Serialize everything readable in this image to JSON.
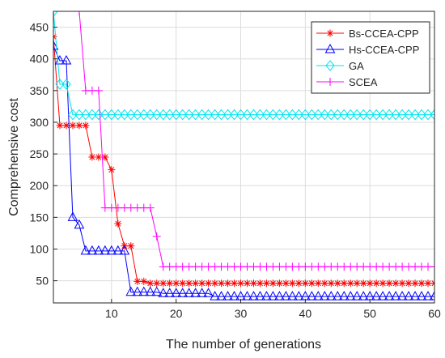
{
  "chart_data": {
    "type": "line",
    "title": "",
    "xlabel": "The number of generations",
    "ylabel": "Comprehensive cost",
    "xlim": [
      1,
      60
    ],
    "ylim": [
      15,
      475
    ],
    "xticks": [
      10,
      20,
      30,
      40,
      50,
      60
    ],
    "yticks": [
      50,
      100,
      150,
      200,
      250,
      300,
      350,
      400,
      450
    ],
    "grid": true,
    "legend_position": "top-right",
    "series": [
      {
        "name": "Bs-CCEA-CPP",
        "color": "#ff0000",
        "marker": "asterisk",
        "x": [
          1,
          2,
          3,
          4,
          5,
          6,
          7,
          8,
          9,
          10,
          11,
          12,
          13,
          14,
          15,
          16,
          17,
          18,
          19,
          20,
          21,
          22,
          23,
          24,
          25,
          26,
          27,
          28,
          29,
          30,
          31,
          32,
          33,
          34,
          35,
          36,
          37,
          38,
          39,
          40,
          41,
          42,
          43,
          44,
          45,
          46,
          47,
          48,
          49,
          50,
          51,
          52,
          53,
          54,
          55,
          56,
          57,
          58,
          59,
          60
        ],
        "values": [
          435,
          295,
          295,
          295,
          295,
          295,
          245,
          245,
          245,
          225,
          140,
          105,
          105,
          49,
          49,
          46,
          46,
          46,
          46,
          46,
          46,
          46,
          46,
          46,
          46,
          46,
          46,
          46,
          46,
          46,
          46,
          46,
          46,
          46,
          46,
          46,
          46,
          46,
          46,
          46,
          46,
          46,
          46,
          46,
          46,
          46,
          46,
          46,
          46,
          46,
          46,
          46,
          46,
          46,
          46,
          46,
          46,
          46,
          46,
          46
        ]
      },
      {
        "name": "Hs-CCEA-CPP",
        "color": "#0000ff",
        "marker": "triangle",
        "x": [
          1,
          2,
          3,
          4,
          5,
          6,
          7,
          8,
          9,
          10,
          11,
          12,
          13,
          14,
          15,
          16,
          17,
          18,
          19,
          20,
          21,
          22,
          23,
          24,
          25,
          26,
          27,
          28,
          29,
          30,
          31,
          32,
          33,
          34,
          35,
          36,
          37,
          38,
          39,
          40,
          41,
          42,
          43,
          44,
          45,
          46,
          47,
          48,
          49,
          50,
          51,
          52,
          53,
          54,
          55,
          56,
          57,
          58,
          59,
          60
        ],
        "values": [
          420,
          397,
          397,
          150,
          138,
          97,
          97,
          97,
          97,
          97,
          97,
          97,
          32,
          32,
          32,
          32,
          32,
          30,
          30,
          30,
          30,
          30,
          30,
          30,
          30,
          25,
          25,
          25,
          25,
          25,
          25,
          25,
          25,
          25,
          25,
          25,
          25,
          25,
          25,
          25,
          25,
          25,
          25,
          25,
          25,
          25,
          25,
          25,
          25,
          25,
          25,
          25,
          25,
          25,
          25,
          25,
          25,
          25,
          25,
          25
        ]
      },
      {
        "name": "GA",
        "color": "#00e5ee",
        "marker": "diamond",
        "x": [
          1,
          2,
          3,
          4,
          5,
          6,
          7,
          8,
          9,
          10,
          11,
          12,
          13,
          14,
          15,
          16,
          17,
          18,
          19,
          20,
          21,
          22,
          23,
          24,
          25,
          26,
          27,
          28,
          29,
          30,
          31,
          32,
          33,
          34,
          35,
          36,
          37,
          38,
          39,
          40,
          41,
          42,
          43,
          44,
          45,
          46,
          47,
          48,
          49,
          50,
          51,
          52,
          53,
          54,
          55,
          56,
          57,
          58,
          59,
          60
        ],
        "values": [
          475,
          360,
          360,
          312,
          312,
          312,
          312,
          312,
          312,
          312,
          312,
          312,
          312,
          312,
          312,
          312,
          312,
          312,
          312,
          312,
          312,
          312,
          312,
          312,
          312,
          312,
          312,
          312,
          312,
          312,
          312,
          312,
          312,
          312,
          312,
          312,
          312,
          312,
          312,
          312,
          312,
          312,
          312,
          312,
          312,
          312,
          312,
          312,
          312,
          312,
          312,
          312,
          312,
          312,
          312,
          312,
          312,
          312,
          312,
          312
        ]
      },
      {
        "name": "SCEA",
        "color": "#ff00ff",
        "marker": "plus",
        "x": [
          5,
          6,
          7,
          8,
          9,
          10,
          11,
          12,
          13,
          14,
          15,
          16,
          17,
          18,
          19,
          20,
          21,
          22,
          23,
          24,
          25,
          26,
          27,
          28,
          29,
          30,
          31,
          32,
          33,
          34,
          35,
          36,
          37,
          38,
          39,
          40,
          41,
          42,
          43,
          44,
          45,
          46,
          47,
          48,
          49,
          50,
          51,
          52,
          53,
          54,
          55,
          56,
          57,
          58,
          59,
          60
        ],
        "values": [
          475,
          350,
          350,
          350,
          165,
          165,
          165,
          165,
          165,
          165,
          165,
          165,
          120,
          72,
          72,
          72,
          72,
          72,
          72,
          72,
          72,
          72,
          72,
          72,
          72,
          72,
          72,
          72,
          72,
          72,
          72,
          72,
          72,
          72,
          72,
          72,
          72,
          72,
          72,
          72,
          72,
          72,
          72,
          72,
          72,
          72,
          72,
          72,
          72,
          72,
          72,
          72,
          72,
          72,
          72,
          72
        ]
      }
    ]
  }
}
